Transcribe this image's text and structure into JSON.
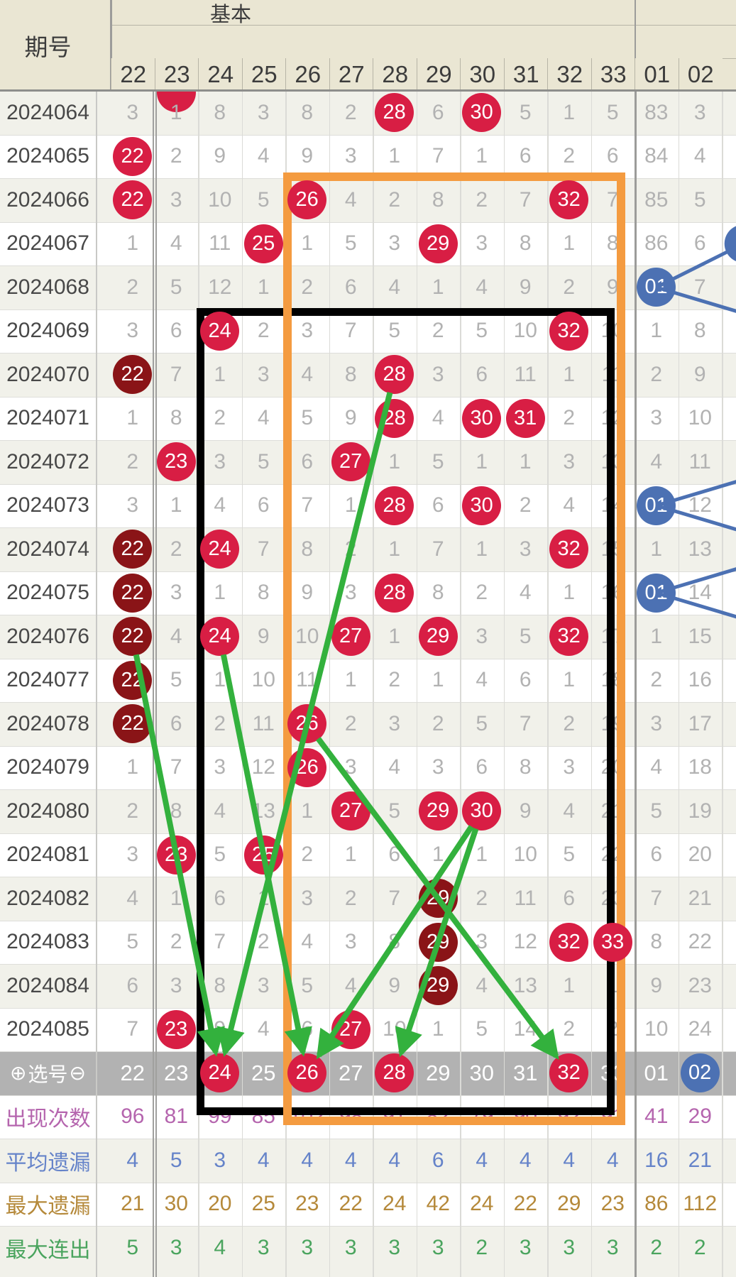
{
  "header": {
    "period_label": "期号",
    "section_title": "基本",
    "columns": [
      "22",
      "23",
      "24",
      "25",
      "26",
      "27",
      "28",
      "29",
      "30",
      "31",
      "32",
      "33",
      "01",
      "02"
    ]
  },
  "rows": [
    {
      "period": "2024064",
      "cells": [
        "3",
        "1",
        "8",
        "3",
        "8",
        "2",
        "28*r",
        "6",
        "30*r",
        "5",
        "1",
        "5",
        "83",
        "3"
      ]
    },
    {
      "period": "2024065",
      "cells": [
        "22*r",
        "2",
        "9",
        "4",
        "9",
        "3",
        "1",
        "7",
        "1",
        "6",
        "2",
        "6",
        "84",
        "4"
      ]
    },
    {
      "period": "2024066",
      "cells": [
        "22*r",
        "3",
        "10",
        "5",
        "26*r",
        "4",
        "2",
        "8",
        "2",
        "7",
        "32*r",
        "7",
        "85",
        "5"
      ]
    },
    {
      "period": "2024067",
      "cells": [
        "1",
        "4",
        "11",
        "25*r",
        "1",
        "5",
        "3",
        "29*r",
        "3",
        "8",
        "1",
        "8",
        "86",
        "6"
      ]
    },
    {
      "period": "2024068",
      "cells": [
        "2",
        "5",
        "12",
        "1",
        "2",
        "6",
        "4",
        "1",
        "4",
        "9",
        "2",
        "9",
        "01*b",
        "7"
      ]
    },
    {
      "period": "2024069",
      "cells": [
        "3",
        "6",
        "24*r",
        "2",
        "3",
        "7",
        "5",
        "2",
        "5",
        "10",
        "32*r",
        "10",
        "1",
        "8"
      ]
    },
    {
      "period": "2024070",
      "cells": [
        "22*d",
        "7",
        "1",
        "3",
        "4",
        "8",
        "28*r",
        "3",
        "6",
        "11",
        "1",
        "11",
        "2",
        "9"
      ]
    },
    {
      "period": "2024071",
      "cells": [
        "1",
        "8",
        "2",
        "4",
        "5",
        "9",
        "28*r",
        "4",
        "30*r",
        "31*r",
        "2",
        "12",
        "3",
        "10"
      ]
    },
    {
      "period": "2024072",
      "cells": [
        "2",
        "23*r",
        "3",
        "5",
        "6",
        "27*r",
        "1",
        "5",
        "1",
        "1",
        "3",
        "13",
        "4",
        "11"
      ]
    },
    {
      "period": "2024073",
      "cells": [
        "3",
        "1",
        "4",
        "6",
        "7",
        "1",
        "28*r",
        "6",
        "30*r",
        "2",
        "4",
        "14",
        "01*b",
        "12"
      ]
    },
    {
      "period": "2024074",
      "cells": [
        "22*d",
        "2",
        "24*r",
        "7",
        "8",
        "2",
        "1",
        "7",
        "1",
        "3",
        "32*r",
        "15",
        "1",
        "13"
      ]
    },
    {
      "period": "2024075",
      "cells": [
        "22*d",
        "3",
        "1",
        "8",
        "9",
        "3",
        "28*r",
        "8",
        "2",
        "4",
        "1",
        "16",
        "01*b",
        "14"
      ]
    },
    {
      "period": "2024076",
      "cells": [
        "22*d",
        "4",
        "24*r",
        "9",
        "10",
        "27*r",
        "1",
        "29*r",
        "3",
        "5",
        "32*r",
        "17",
        "1",
        "15"
      ]
    },
    {
      "period": "2024077",
      "cells": [
        "22*d",
        "5",
        "1",
        "10",
        "11",
        "1",
        "2",
        "1",
        "4",
        "6",
        "1",
        "18",
        "2",
        "16"
      ]
    },
    {
      "period": "2024078",
      "cells": [
        "22*d",
        "6",
        "2",
        "11",
        "26*r",
        "2",
        "3",
        "2",
        "5",
        "7",
        "2",
        "19",
        "3",
        "17"
      ]
    },
    {
      "period": "2024079",
      "cells": [
        "1",
        "7",
        "3",
        "12",
        "26*r",
        "3",
        "4",
        "3",
        "6",
        "8",
        "3",
        "20",
        "4",
        "18"
      ]
    },
    {
      "period": "2024080",
      "cells": [
        "2",
        "8",
        "4",
        "13",
        "1",
        "27*r",
        "5",
        "29*r",
        "30*r",
        "9",
        "4",
        "21",
        "5",
        "19"
      ]
    },
    {
      "period": "2024081",
      "cells": [
        "3",
        "23*r",
        "5",
        "25*r",
        "2",
        "1",
        "6",
        "1",
        "1",
        "10",
        "5",
        "22",
        "6",
        "20"
      ]
    },
    {
      "period": "2024082",
      "cells": [
        "4",
        "1",
        "6",
        "1",
        "3",
        "2",
        "7",
        "29*d",
        "2",
        "11",
        "6",
        "23",
        "7",
        "21"
      ]
    },
    {
      "period": "2024083",
      "cells": [
        "5",
        "2",
        "7",
        "2",
        "4",
        "3",
        "8",
        "29*d",
        "3",
        "12",
        "32*r",
        "33*r",
        "8",
        "22"
      ]
    },
    {
      "period": "2024084",
      "cells": [
        "6",
        "3",
        "8",
        "3",
        "5",
        "4",
        "9",
        "29*d",
        "4",
        "13",
        "1",
        "1",
        "9",
        "23"
      ]
    },
    {
      "period": "2024085",
      "cells": [
        "7",
        "23*r",
        "9",
        "4",
        "6",
        "27*r",
        "10",
        "1",
        "5",
        "14",
        "2",
        "2",
        "10",
        "24"
      ]
    }
  ],
  "selection": {
    "plus": "⊕",
    "label": "选号",
    "minus": "⊖",
    "cells": [
      "22",
      "23",
      "24*r",
      "25",
      "26*r",
      "27",
      "28*r",
      "29",
      "30",
      "31",
      "32*r",
      "33",
      "01",
      "02*b"
    ]
  },
  "stats": [
    {
      "label": "出现次数",
      "color": "#b565ae",
      "values": [
        "96",
        "81",
        "99",
        "85",
        "102",
        "98",
        "91",
        "82",
        "79",
        "90",
        "92",
        "91",
        "41",
        "29"
      ]
    },
    {
      "label": "平均遗漏",
      "color": "#6583c9",
      "values": [
        "4",
        "5",
        "3",
        "4",
        "4",
        "4",
        "4",
        "6",
        "4",
        "4",
        "4",
        "4",
        "16",
        "21"
      ]
    },
    {
      "label": "最大遗漏",
      "color": "#b5893a",
      "values": [
        "21",
        "30",
        "20",
        "25",
        "23",
        "22",
        "24",
        "42",
        "24",
        "22",
        "29",
        "23",
        "86",
        "112"
      ]
    },
    {
      "label": "最大连出",
      "color": "#4aa45e",
      "values": [
        "5",
        "3",
        "4",
        "3",
        "3",
        "3",
        "3",
        "3",
        "2",
        "3",
        "3",
        "3",
        "2",
        "2"
      ]
    }
  ],
  "annotations": {
    "boxes": [
      {
        "name": "black-box",
        "color": "#000000",
        "col_from": "24",
        "col_to": "32",
        "row_from": "2024069",
        "row_to": "selection"
      },
      {
        "name": "orange-box",
        "color": "#f49b40",
        "col_from": "26",
        "col_to": "32",
        "row_from": "2024066",
        "row_to": "selection"
      }
    ],
    "green_arrows": [
      {
        "from_col": "22",
        "from_row": "2024076",
        "to_col": "24",
        "to_row": "selection"
      },
      {
        "from_col": "24",
        "from_row": "2024076",
        "to_col": "26",
        "to_row": "selection"
      },
      {
        "from_col": "28",
        "from_row": "2024070",
        "to_col": "24",
        "to_row": "selection"
      },
      {
        "from_col": "26",
        "from_row": "2024078",
        "to_col": "32",
        "to_row": "selection"
      },
      {
        "from_col": "30",
        "from_row": "2024080",
        "to_col": "28",
        "to_row": "selection"
      },
      {
        "from_col": "30",
        "from_row": "2024080",
        "to_col": "26",
        "to_row": "selection"
      }
    ],
    "blue_links": [
      {
        "from_col": "03",
        "from_row": "2024067",
        "to_col": "01",
        "to_row": "2024068"
      },
      {
        "from_col": "01",
        "from_row": "2024068",
        "to_col": "offscreen",
        "to_row": "2024069"
      },
      {
        "from_col": "offscreen",
        "from_row": "2024072",
        "to_col": "01",
        "to_row": "2024073"
      },
      {
        "from_col": "01",
        "from_row": "2024073",
        "to_col": "offscreen",
        "to_row": "2024074"
      },
      {
        "from_col": "offscreen",
        "from_row": "2024074",
        "to_col": "01",
        "to_row": "2024075"
      },
      {
        "from_col": "01",
        "from_row": "2024075",
        "to_col": "offscreen",
        "to_row": "2024076"
      }
    ],
    "partial_blue_circle": {
      "col": "03",
      "row": "2024067"
    },
    "clipped_top_circle_col": "23"
  },
  "colors": {
    "header_bg": "#eae6d3",
    "stripe_bg": "#f1f1ea",
    "white_bg": "#ffffff",
    "red_circle": "#d81e44",
    "dark_red_circle": "#8a1417",
    "blue_circle": "#4c71b3",
    "selection_bg": "#b2b2b2",
    "green_arrow": "#33b13d",
    "orange_box": "#f49b40",
    "gray_text": "#b2b2b2",
    "dark_text": "#484848"
  }
}
